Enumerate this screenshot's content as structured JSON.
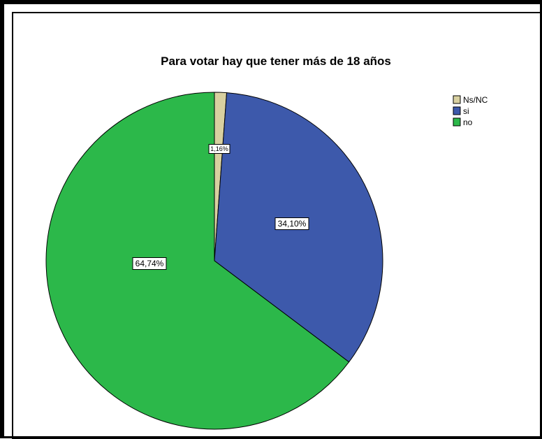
{
  "chart_data": {
    "type": "pie",
    "title": "Para votar hay que tener más de 18 años",
    "slices": [
      {
        "label": "Ns/NC",
        "value": 1.16,
        "display": "1,16%",
        "color": "#d8d0a0"
      },
      {
        "label": "si",
        "value": 34.1,
        "display": "34,10%",
        "color": "#3d59ab"
      },
      {
        "label": "no",
        "value": 64.74,
        "display": "64,74%",
        "color": "#2cb84a"
      }
    ],
    "legend": {
      "placement": "top-right",
      "entries": [
        "Ns/NC",
        "si",
        "no"
      ]
    },
    "start": "top",
    "direction": "clockwise"
  }
}
